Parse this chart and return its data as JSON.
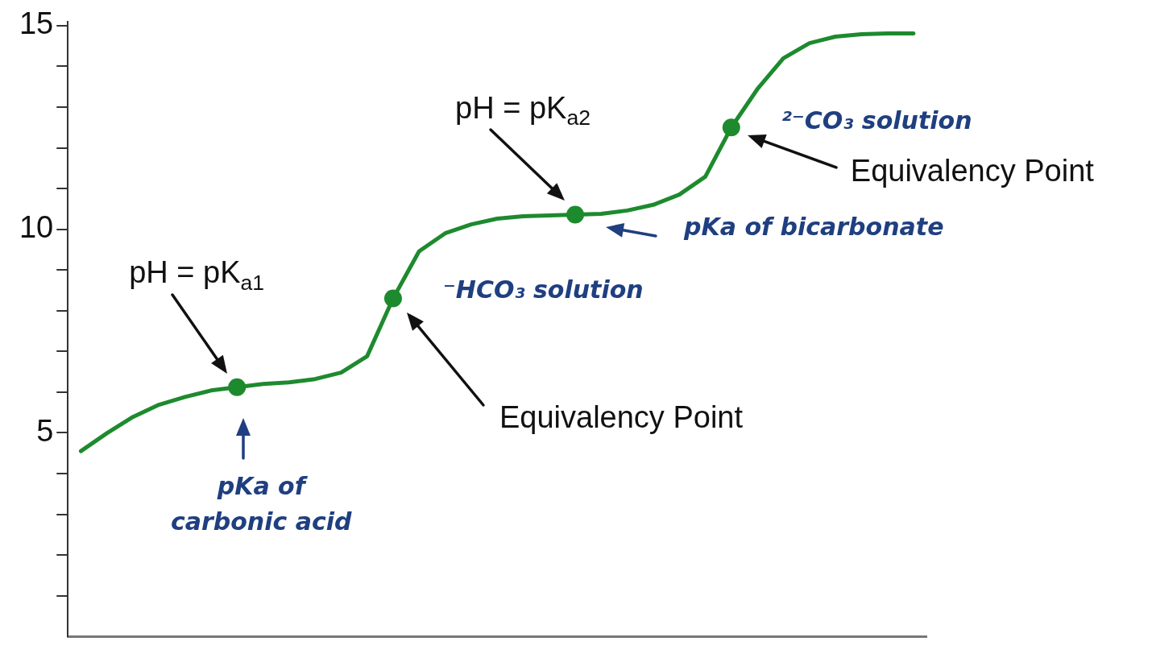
{
  "chart_data": {
    "type": "line",
    "categories": [
      null,
      null,
      null,
      null,
      null,
      null,
      null,
      null,
      null,
      null,
      null,
      null,
      null,
      null,
      null,
      null,
      null,
      null,
      null,
      null,
      null,
      null,
      null,
      null,
      null,
      null,
      null,
      null,
      null,
      null,
      null,
      null,
      null
    ],
    "series": [
      {
        "color": "#1e8a2e",
        "marker": "none",
        "values": [
          4.55,
          4.99,
          5.39,
          5.69,
          5.88,
          6.04,
          6.12,
          6.2,
          6.24,
          6.32,
          6.48,
          6.88,
          8.3,
          9.46,
          9.9,
          10.12,
          10.26,
          10.32,
          10.34,
          10.36,
          10.38,
          10.46,
          10.6,
          10.85,
          11.29,
          12.5,
          13.44,
          14.2,
          14.57,
          14.73,
          14.79,
          14.81,
          14.81
        ]
      },
      {
        "type": "scatter",
        "color": "#1e8a2e",
        "marker": "circle",
        "values": [
          null,
          null,
          null,
          null,
          null,
          null,
          6.12,
          null,
          null,
          null,
          null,
          null,
          8.3,
          null,
          null,
          null,
          null,
          null,
          null,
          10.36,
          null,
          null,
          null,
          null,
          null,
          12.5,
          null,
          null,
          null,
          null,
          null,
          null,
          null
        ]
      }
    ],
    "annotations": [
      "pH = pK$_{a1}$",
      "pKa of carbonic acid",
      "Equivalency Point",
      "⁻HCO₃ solution",
      "pH = pK$_{a2}$",
      "pKa of bicarbonate",
      "Equivalency Point",
      "²⁻CO₃ solution"
    ],
    "ylim": [
      0,
      15.1
    ],
    "yticks": [
      {
        "value": 1,
        "label": null
      },
      {
        "value": 2,
        "label": null
      },
      {
        "value": 3,
        "label": null
      },
      {
        "value": 4,
        "label": null
      },
      5,
      {
        "value": 6,
        "label": null
      },
      {
        "value": 7,
        "label": null
      },
      {
        "value": 8,
        "label": null
      },
      {
        "value": 9,
        "label": null
      },
      10,
      {
        "value": 11,
        "label": null
      },
      {
        "value": 12,
        "label": null
      },
      {
        "value": 13,
        "label": null
      },
      {
        "value": 14,
        "label": null
      },
      15
    ],
    "tick_labels": "y"
  }
}
